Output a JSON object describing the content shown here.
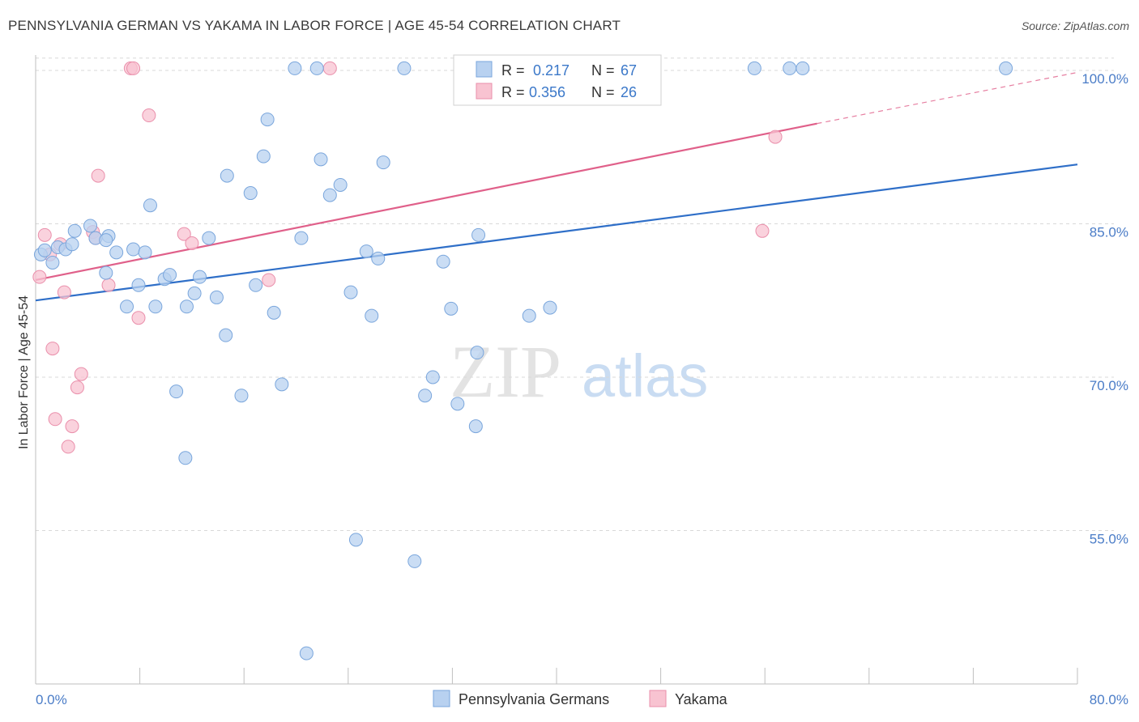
{
  "title": "PENNSYLVANIA GERMAN VS YAKAMA IN LABOR FORCE | AGE 45-54 CORRELATION CHART",
  "source": "Source: ZipAtlas.com",
  "watermark": {
    "zip": "ZIP",
    "atlas": "atlas"
  },
  "colors": {
    "blue_fill": "#b8d1f0",
    "blue_stroke": "#7aa6dc",
    "blue_line": "#2f6fc8",
    "pink_fill": "#f8c3d1",
    "pink_stroke": "#ea8fab",
    "pink_line": "#e0608a",
    "grid": "#d8d8d8",
    "tick_text": "#4a7cc7"
  },
  "legend": {
    "rows": [
      {
        "r_label": "R = ",
        "r_value": "0.217",
        "n_label": "N = ",
        "n_value": "67"
      },
      {
        "r_label": "R = ",
        "r_value": "0.356",
        "n_label": "N = ",
        "n_value": "26"
      }
    ]
  },
  "bottom_legend": [
    "Pennsylvania Germans",
    "Yakama"
  ],
  "chart_data": {
    "type": "scatter",
    "title": "PENNSYLVANIA GERMAN VS YAKAMA IN LABOR FORCE | AGE 45-54 CORRELATION CHART",
    "xlabel": "",
    "ylabel": "In Labor Force | Age 45-54",
    "xlim": [
      0,
      80
    ],
    "ylim": [
      40,
      101.5
    ],
    "x_tick_labels": [
      "0.0%",
      "80.0%"
    ],
    "y_ticks": [
      55,
      70,
      85,
      100
    ],
    "y_tick_labels": [
      "55.0%",
      "70.0%",
      "85.0%",
      "100.0%"
    ],
    "grid": "horizontal dashed",
    "legend_position": "top-center",
    "series": [
      {
        "name": "Pennsylvania Germans",
        "color": "#b8d1f0",
        "trend": {
          "x": [
            0,
            80
          ],
          "y": [
            77.5,
            90.8
          ]
        },
        "points": [
          [
            0.4,
            82.0
          ],
          [
            0.7,
            82.4
          ],
          [
            1.3,
            81.2
          ],
          [
            1.7,
            82.7
          ],
          [
            2.3,
            82.5
          ],
          [
            2.8,
            83.0
          ],
          [
            3.0,
            84.3
          ],
          [
            4.2,
            84.8
          ],
          [
            4.6,
            83.6
          ],
          [
            5.6,
            83.8
          ],
          [
            5.4,
            83.4
          ],
          [
            5.4,
            80.2
          ],
          [
            6.2,
            82.2
          ],
          [
            7.0,
            76.9
          ],
          [
            7.5,
            82.5
          ],
          [
            7.9,
            79.0
          ],
          [
            8.4,
            82.2
          ],
          [
            8.8,
            86.8
          ],
          [
            9.2,
            76.9
          ],
          [
            9.9,
            79.6
          ],
          [
            10.3,
            80.0
          ],
          [
            10.8,
            68.6
          ],
          [
            11.5,
            62.1
          ],
          [
            11.6,
            76.9
          ],
          [
            12.2,
            78.2
          ],
          [
            12.6,
            79.8
          ],
          [
            13.3,
            83.6
          ],
          [
            13.9,
            77.8
          ],
          [
            14.6,
            74.1
          ],
          [
            14.7,
            89.7
          ],
          [
            15.8,
            68.2
          ],
          [
            16.5,
            88.0
          ],
          [
            16.9,
            79.0
          ],
          [
            17.5,
            91.6
          ],
          [
            17.8,
            95.2
          ],
          [
            18.3,
            76.3
          ],
          [
            18.9,
            69.3
          ],
          [
            19.9,
            100.2
          ],
          [
            20.4,
            83.6
          ],
          [
            20.8,
            43.0
          ],
          [
            21.6,
            100.2
          ],
          [
            21.9,
            91.3
          ],
          [
            22.6,
            87.8
          ],
          [
            23.4,
            88.8
          ],
          [
            24.2,
            78.3
          ],
          [
            24.6,
            54.1
          ],
          [
            25.4,
            82.3
          ],
          [
            25.8,
            76.0
          ],
          [
            26.3,
            81.6
          ],
          [
            26.7,
            91.0
          ],
          [
            28.3,
            100.2
          ],
          [
            29.1,
            52.0
          ],
          [
            29.9,
            68.2
          ],
          [
            30.5,
            70.0
          ],
          [
            31.3,
            81.3
          ],
          [
            31.9,
            76.7
          ],
          [
            32.4,
            67.4
          ],
          [
            33.8,
            65.2
          ],
          [
            33.9,
            72.4
          ],
          [
            34.0,
            83.9
          ],
          [
            37.9,
            76.0
          ],
          [
            39.5,
            76.8
          ],
          [
            47.2,
            100.2
          ],
          [
            55.2,
            100.2
          ],
          [
            57.9,
            100.2
          ],
          [
            58.9,
            100.2
          ],
          [
            74.5,
            100.2
          ]
        ]
      },
      {
        "name": "Yakama",
        "color": "#f8c3d1",
        "trend": {
          "x": [
            0,
            60
          ],
          "y": [
            79.5,
            94.8
          ]
        },
        "trend_dashed": {
          "x": [
            60,
            80
          ],
          "y": [
            94.8,
            99.8
          ]
        },
        "points": [
          [
            0.3,
            79.8
          ],
          [
            0.7,
            83.9
          ],
          [
            1.1,
            82.0
          ],
          [
            1.3,
            72.8
          ],
          [
            1.5,
            65.9
          ],
          [
            1.9,
            83.0
          ],
          [
            2.2,
            78.3
          ],
          [
            2.5,
            63.2
          ],
          [
            2.8,
            65.2
          ],
          [
            3.2,
            69.0
          ],
          [
            3.5,
            70.3
          ],
          [
            4.4,
            84.2
          ],
          [
            4.6,
            83.6
          ],
          [
            4.8,
            89.7
          ],
          [
            5.6,
            79.0
          ],
          [
            7.3,
            100.2
          ],
          [
            7.5,
            100.2
          ],
          [
            7.9,
            75.8
          ],
          [
            8.7,
            95.6
          ],
          [
            11.4,
            84.0
          ],
          [
            12.0,
            83.1
          ],
          [
            17.9,
            79.5
          ],
          [
            22.6,
            100.2
          ],
          [
            55.8,
            84.3
          ],
          [
            56.8,
            93.5
          ],
          [
            46.8,
            100.2
          ]
        ]
      }
    ]
  }
}
